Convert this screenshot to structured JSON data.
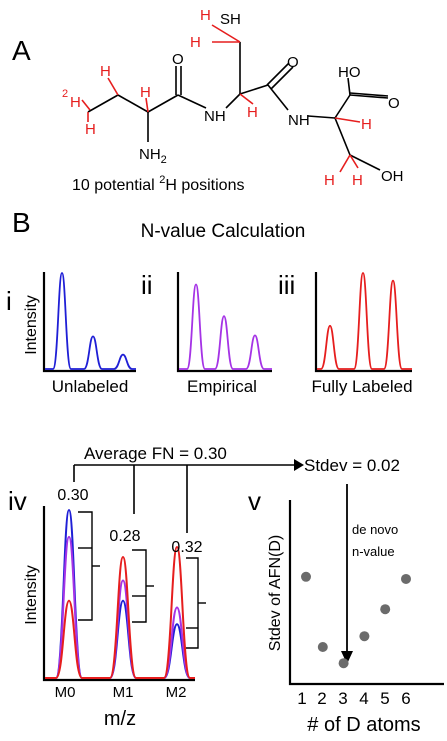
{
  "panel_a": {
    "label": "A",
    "atoms": {
      "sh": "SH",
      "nh_left": "NH",
      "nh_right": "NH",
      "ho": "HO",
      "o_left": "O",
      "o_mid": "O",
      "o_right": "O",
      "oh": "OH",
      "nh2": "NH",
      "nh2_sub": "2",
      "h": "H",
      "deuterium_sup": "2"
    },
    "caption": "10 potential ",
    "caption_sup": "2",
    "caption_end": "H positions"
  },
  "panel_b": {
    "label": "B",
    "title": "N-value Calculation",
    "sub_i": {
      "roman": "i",
      "axis": "Intensity",
      "label": "Unlabeled"
    },
    "sub_ii": {
      "roman": "ii",
      "label": "Empirical"
    },
    "sub_iii": {
      "roman": "iii",
      "label": "Fully Labeled"
    },
    "avg_fn": "Average FN = 0.30",
    "stdev": "Stdev = 0.02",
    "sub_iv": {
      "roman": "iv",
      "axis": "Intensity",
      "xlabel": "m/z",
      "values": [
        "0.30",
        "0.28",
        "0.32"
      ],
      "ticks": [
        "M0",
        "M1",
        "M2"
      ]
    },
    "sub_v": {
      "roman": "v",
      "ylabel": "Stdev of AFN(D)",
      "xlabel": "# of D atoms",
      "ticks": [
        "1",
        "2",
        "3",
        "4",
        "5",
        "6"
      ],
      "annotation_line1": "de novo",
      "annotation_line2": "n-value"
    }
  },
  "colors": {
    "unlabeled": "#1f1fd6",
    "empirical": "#a533e6",
    "labeled": "#e61e1e",
    "hydrogen": "#e61e1e",
    "dots": "#6b6b6b"
  },
  "chart_data": [
    {
      "type": "line",
      "panel": "i",
      "series": [
        {
          "values": [
            1.0,
            0.34,
            0.15
          ]
        }
      ]
    },
    {
      "type": "line",
      "panel": "ii",
      "series": [
        {
          "values": [
            0.88,
            0.55,
            0.35
          ]
        }
      ]
    },
    {
      "type": "line",
      "panel": "iii",
      "series": [
        {
          "values": [
            0.45,
            1.0,
            0.92
          ]
        }
      ]
    },
    {
      "type": "line",
      "panel": "iv",
      "categories": [
        "M0",
        "M1",
        "M2"
      ],
      "series": [
        {
          "values": [
            1.0,
            0.46,
            0.32
          ]
        },
        {
          "values": [
            0.84,
            0.58,
            0.42
          ]
        },
        {
          "values": [
            0.46,
            0.72,
            0.78
          ]
        }
      ]
    },
    {
      "type": "scatter",
      "panel": "v",
      "x": [
        1,
        2,
        3,
        4,
        5,
        6
      ],
      "y": [
        0.09,
        0.025,
        0.01,
        0.035,
        0.06,
        0.088
      ]
    }
  ]
}
